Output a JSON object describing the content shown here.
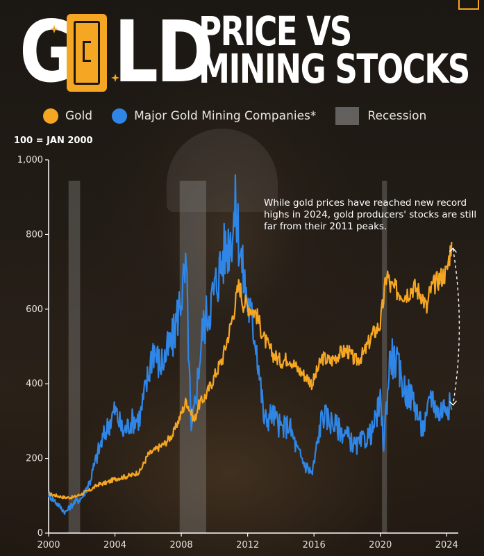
{
  "header": {
    "title_word": "GOLD",
    "title_line1": "PRICE VS",
    "title_line2": "MINING STOCKS"
  },
  "legend": {
    "gold_label": "Gold",
    "miners_label": "Major Gold Mining Companies*",
    "recession_label": "Recession"
  },
  "baseline_note": "100 = JAN 2000",
  "annotation": "While gold prices have reached new record highs in 2024, gold producers' stocks are still far from their 2011 peaks.",
  "colors": {
    "gold": "#f5a623",
    "miners": "#2f86e6",
    "recession": "#9a9a9a",
    "text": "#ffffff"
  },
  "icons": [
    "gold-bar-icon",
    "sparkle-icon",
    "corner-logo-icon"
  ],
  "chart_data": {
    "type": "line",
    "title": "GOLD PRICE VS MINING STOCKS",
    "ylabel": "100 = JAN 2000",
    "xlim": [
      2000,
      2024.7
    ],
    "ylim": [
      0,
      1000
    ],
    "x_ticks": [
      2000,
      2004,
      2008,
      2012,
      2016,
      2020,
      2024
    ],
    "y_ticks": [
      0,
      200,
      400,
      600,
      800,
      1000
    ],
    "y_tick_labels": [
      "0",
      "200",
      "400",
      "600",
      "800",
      "1,000"
    ],
    "x_tick_labels": [
      "2000",
      "2004",
      "2008",
      "2012",
      "2016",
      "2020",
      "2024"
    ],
    "grid": false,
    "legend_position": "top",
    "recessions": [
      [
        2001.2,
        2001.9
      ],
      [
        2007.9,
        2009.5
      ],
      [
        2020.1,
        2020.4
      ]
    ],
    "series": [
      {
        "name": "Gold",
        "x": [
          2000,
          2000.5,
          2001,
          2001.5,
          2002,
          2002.5,
          2003,
          2003.5,
          2004,
          2004.5,
          2005,
          2005.5,
          2006,
          2006.5,
          2007,
          2007.5,
          2008,
          2008.3,
          2008.8,
          2009,
          2009.5,
          2010,
          2010.5,
          2011,
          2011.5,
          2011.7,
          2012,
          2012.5,
          2013,
          2013.5,
          2014,
          2014.5,
          2015,
          2015.5,
          2015.9,
          2016.5,
          2017,
          2017.5,
          2018,
          2018.5,
          2019,
          2019.5,
          2020,
          2020.4,
          2020.6,
          2021,
          2021.5,
          2022,
          2022.5,
          2022.8,
          2023,
          2023.5,
          2024,
          2024.3
        ],
        "values": [
          105,
          100,
          95,
          96,
          105,
          115,
          130,
          135,
          145,
          150,
          155,
          165,
          210,
          225,
          240,
          265,
          320,
          355,
          300,
          340,
          370,
          420,
          470,
          560,
          670,
          620,
          610,
          590,
          520,
          480,
          460,
          470,
          440,
          420,
          400,
          470,
          460,
          480,
          490,
          460,
          480,
          530,
          560,
          700,
          660,
          650,
          640,
          660,
          640,
          600,
          650,
          680,
          700,
          780
        ]
      },
      {
        "name": "Major Gold Mining Companies*",
        "x": [
          2000,
          2000.5,
          2001,
          2001.5,
          2002,
          2002.5,
          2003,
          2003.5,
          2004,
          2004.5,
          2005,
          2005.5,
          2006,
          2006.3,
          2006.7,
          2007,
          2007.5,
          2008,
          2008.3,
          2008.6,
          2008.9,
          2009.3,
          2009.8,
          2010,
          2010.5,
          2011,
          2011.3,
          2011.7,
          2012,
          2012.5,
          2013,
          2013.5,
          2014,
          2014.5,
          2015,
          2015.5,
          2015.9,
          2016.5,
          2017,
          2017.5,
          2018,
          2018.5,
          2019,
          2019.5,
          2020,
          2020.2,
          2020.6,
          2021,
          2021.5,
          2022,
          2022.5,
          2022.8,
          2023,
          2023.5,
          2024,
          2024.3
        ],
        "values": [
          105,
          80,
          55,
          80,
          95,
          140,
          220,
          280,
          330,
          270,
          300,
          310,
          420,
          500,
          450,
          470,
          520,
          640,
          700,
          260,
          380,
          550,
          620,
          650,
          740,
          800,
          870,
          700,
          620,
          520,
          300,
          320,
          280,
          290,
          220,
          180,
          160,
          320,
          300,
          280,
          260,
          230,
          250,
          270,
          350,
          240,
          480,
          450,
          380,
          360,
          280,
          300,
          380,
          320,
          350,
          330
        ]
      }
    ]
  }
}
